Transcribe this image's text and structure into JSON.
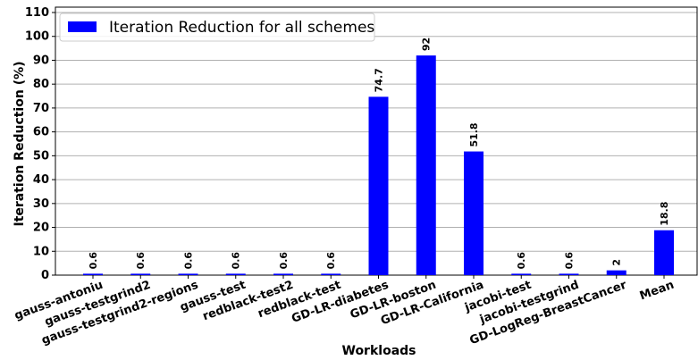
{
  "chart_data": {
    "type": "bar",
    "xlabel": "Workloads",
    "ylabel": "Iteration Reduction (%)",
    "categories": [
      "gauss-antoniu",
      "gauss-testgrind2",
      "gauss-testgrind2-regions",
      "gauss-test",
      "redblack-test2",
      "redblack-test",
      "GD-LR-diabetes",
      "GD-LR-boston",
      "GD-LR-California",
      "jacobi-test",
      "jacobi-testgrind",
      "GD-LogReg-BreastCancer",
      "Mean"
    ],
    "series": [
      {
        "name": "Iteration Reduction for all schemes",
        "color": "#0000ff",
        "values": [
          0.6,
          0.6,
          0.6,
          0.6,
          0.6,
          0.6,
          74.7,
          92,
          51.8,
          0.6,
          0.6,
          2,
          18.8
        ]
      }
    ],
    "ylim": [
      0,
      110
    ],
    "yticks": [
      0,
      10,
      20,
      30,
      40,
      50,
      60,
      70,
      80,
      90,
      100,
      110
    ],
    "grid": true,
    "legend": "upper left"
  }
}
